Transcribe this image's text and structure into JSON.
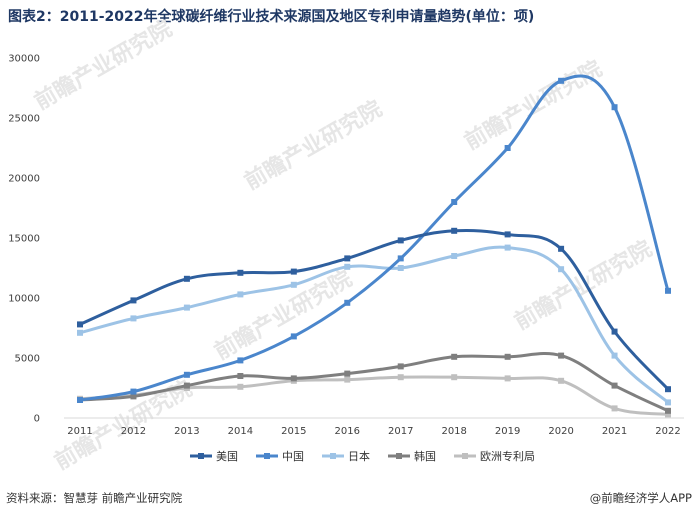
{
  "title": "图表2：2011-2022年全球碳纤维行业技术来源国及地区专利申请量趋势(单位：项)",
  "source": "资料来源：智慧芽 前瞻产业研究院",
  "credit": "@前瞻经济学人APP",
  "watermark": "前瞻产业研究院",
  "chart_data": {
    "type": "line",
    "x": [
      "2011",
      "2012",
      "2013",
      "2014",
      "2015",
      "2016",
      "2017",
      "2018",
      "2019",
      "2020",
      "2021",
      "2022"
    ],
    "ylim": [
      0,
      30000
    ],
    "yticks": [
      "0",
      "5000",
      "10000",
      "15000",
      "20000",
      "25000",
      "30000"
    ],
    "legend_position": "bottom",
    "grid": false,
    "series": [
      {
        "name": "美国",
        "color": "#2e5f9e",
        "marker": "square",
        "values": [
          7800,
          9800,
          11600,
          12100,
          12200,
          13300,
          14800,
          15600,
          15300,
          14100,
          7200,
          2400
        ]
      },
      {
        "name": "中国",
        "color": "#4a86cc",
        "marker": "square",
        "values": [
          1500,
          2200,
          3600,
          4800,
          6800,
          9600,
          13300,
          18000,
          22500,
          28100,
          25900,
          10600
        ]
      },
      {
        "name": "日本",
        "color": "#9dc3e6",
        "marker": "square",
        "values": [
          7100,
          8300,
          9200,
          10300,
          11100,
          12600,
          12500,
          13500,
          14200,
          12400,
          5200,
          1300
        ]
      },
      {
        "name": "韩国",
        "color": "#7f7f7f",
        "marker": "square",
        "values": [
          1500,
          1800,
          2700,
          3500,
          3300,
          3700,
          4300,
          5100,
          5100,
          5200,
          2700,
          600
        ]
      },
      {
        "name": "欧洲专利局",
        "color": "#bfbfbf",
        "marker": "square",
        "values": [
          1600,
          1900,
          2500,
          2600,
          3100,
          3200,
          3400,
          3400,
          3300,
          3100,
          800,
          300
        ]
      }
    ]
  }
}
